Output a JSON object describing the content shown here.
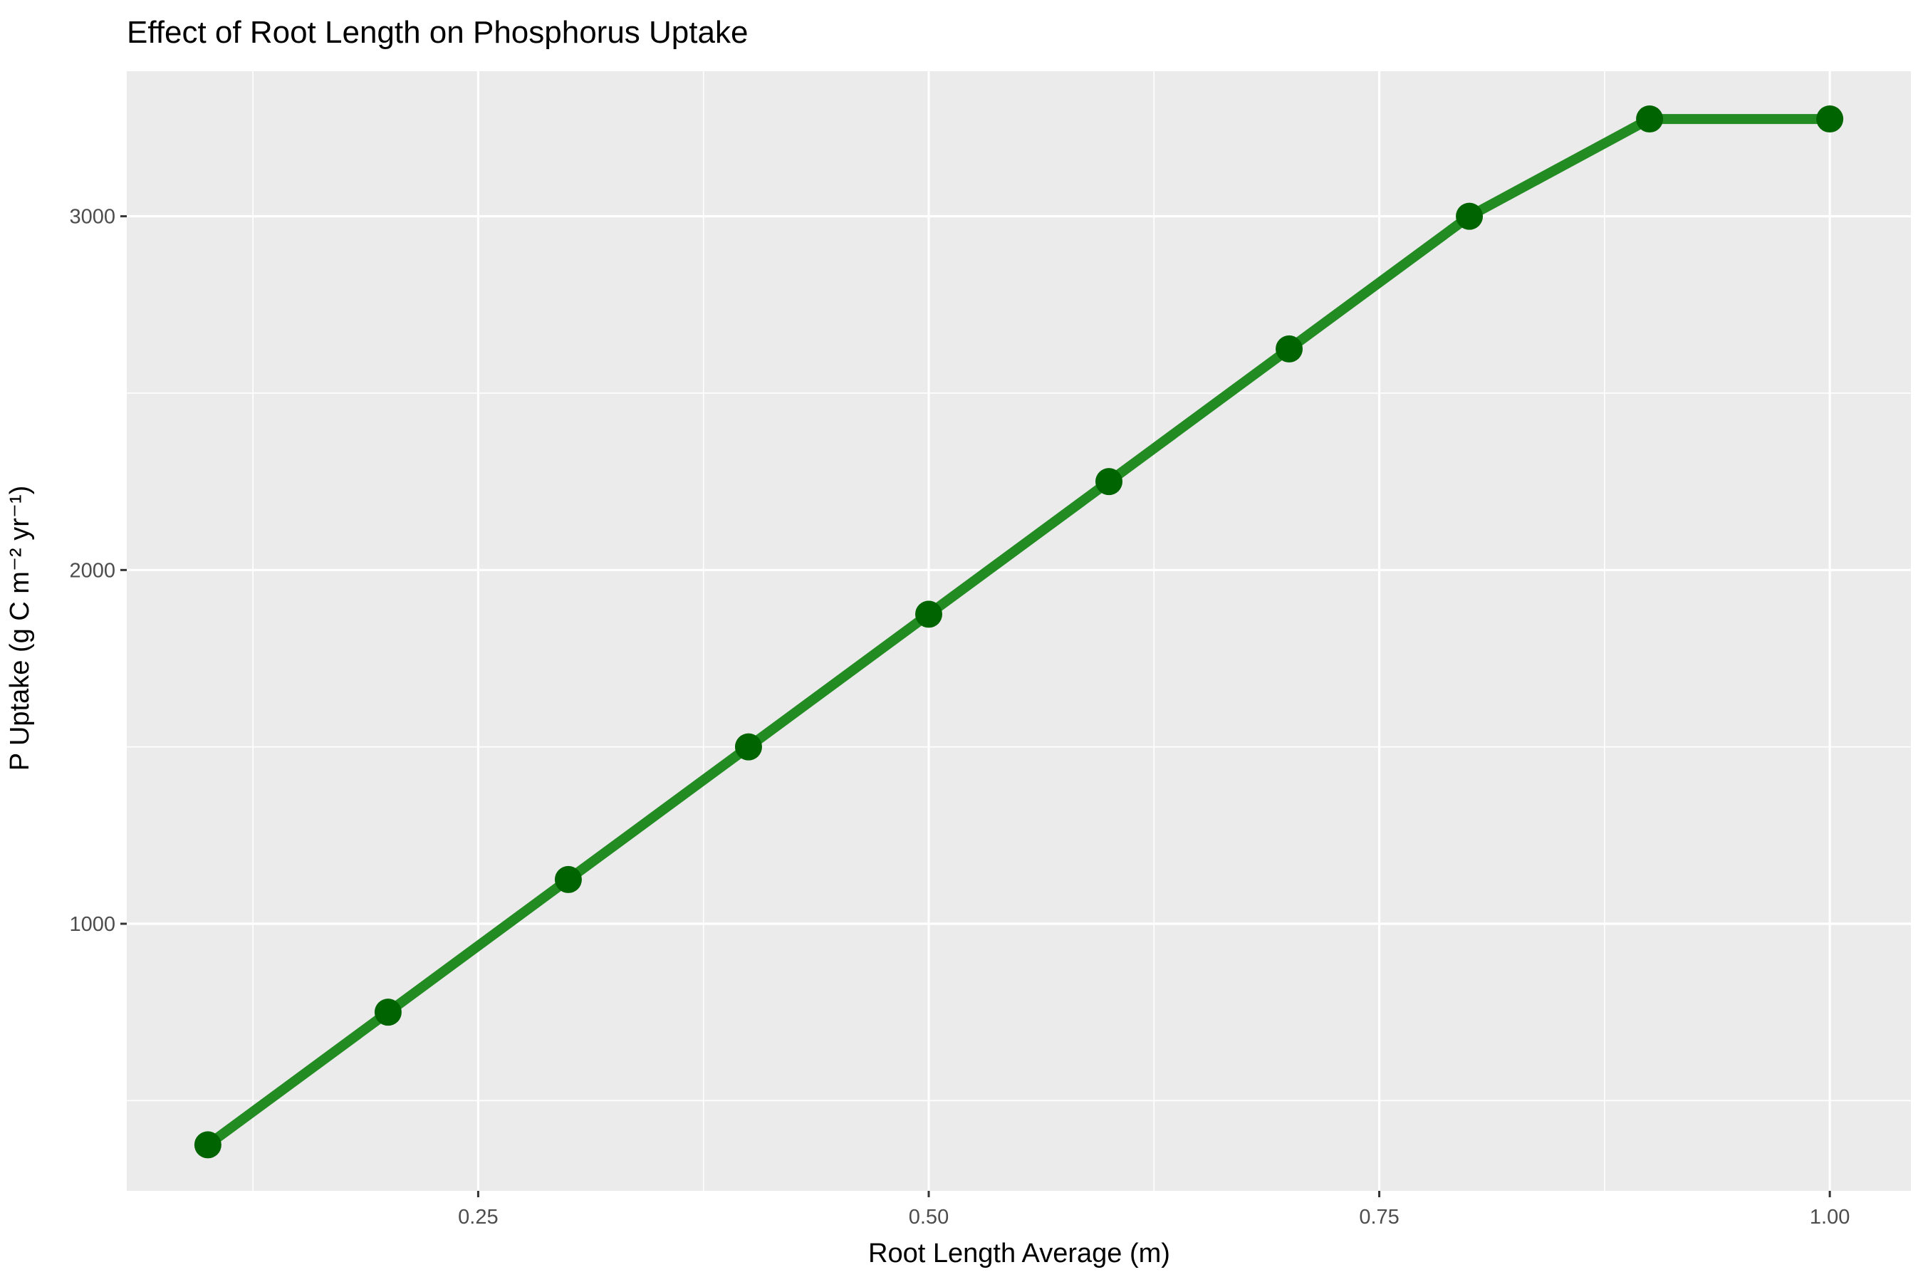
{
  "chart_data": {
    "type": "line",
    "title": "Effect of Root Length on Phosphorus Uptake",
    "xlabel": "Root Length Average (m)",
    "ylabel": "P Uptake (g C m⁻² yr⁻¹)",
    "x": [
      0.1,
      0.2,
      0.3,
      0.4,
      0.5,
      0.6,
      0.7,
      0.8,
      0.9,
      1.0
    ],
    "series": [
      {
        "values": [
          375,
          750,
          1125,
          1500,
          1875,
          2250,
          2625,
          3000,
          3275,
          3275
        ]
      }
    ],
    "xlim": [
      0.055,
      1.045
    ],
    "ylim": [
      245,
      3410
    ],
    "x_ticks": [
      {
        "value": 0.25,
        "label": "0.25"
      },
      {
        "value": 0.5,
        "label": "0.50"
      },
      {
        "value": 0.75,
        "label": "0.75"
      },
      {
        "value": 1.0,
        "label": "1.00"
      }
    ],
    "x_minor_ticks": [
      0.125,
      0.375,
      0.625,
      0.875
    ],
    "y_ticks": [
      {
        "value": 1000,
        "label": "1000"
      },
      {
        "value": 2000,
        "label": "2000"
      },
      {
        "value": 3000,
        "label": "3000"
      }
    ],
    "y_minor_ticks": [
      500,
      1500,
      2500
    ],
    "grid": true,
    "legend": "none",
    "colors": {
      "panel": "#EBEBEB",
      "grid": "#FFFFFF",
      "line": "#228B22",
      "point": "#006400",
      "tick_text": "#4D4D4D"
    }
  }
}
